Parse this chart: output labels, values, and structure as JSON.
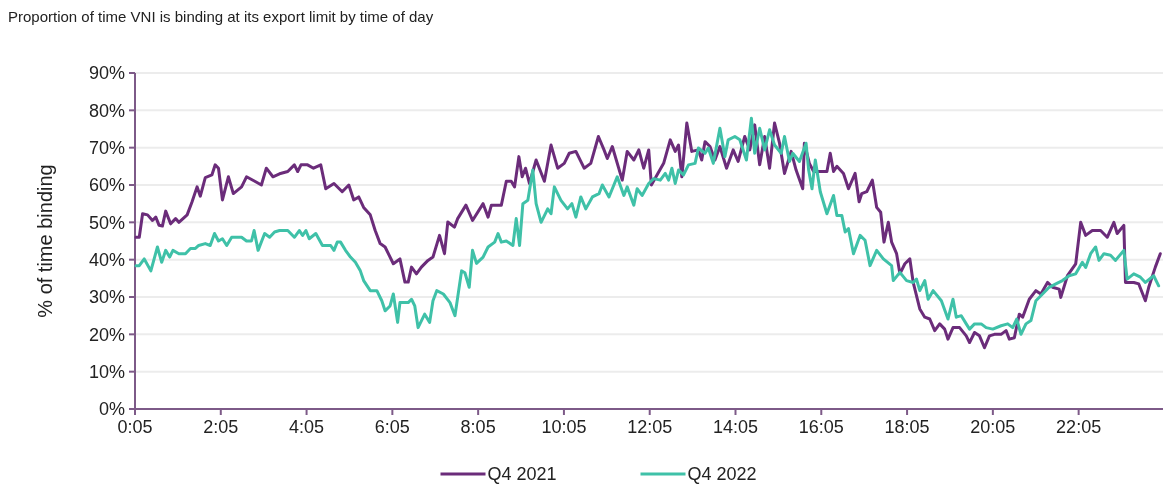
{
  "chart_data": {
    "type": "line",
    "title": "Proportion of time VNI is binding at its export limit by time of day",
    "ylabel": "% of time binding",
    "xlim": [
      0.0833,
      24.05
    ],
    "ylim": [
      0,
      90
    ],
    "xticks": [
      {
        "value": 0.0833,
        "label": "0:05"
      },
      {
        "value": 2.0833,
        "label": "2:05"
      },
      {
        "value": 4.0833,
        "label": "4:05"
      },
      {
        "value": 6.0833,
        "label": "6:05"
      },
      {
        "value": 8.0833,
        "label": "8:05"
      },
      {
        "value": 10.0833,
        "label": "10:05"
      },
      {
        "value": 12.0833,
        "label": "12:05"
      },
      {
        "value": 14.0833,
        "label": "14:05"
      },
      {
        "value": 16.0833,
        "label": "16:05"
      },
      {
        "value": 18.0833,
        "label": "18:05"
      },
      {
        "value": 20.0833,
        "label": "20:05"
      },
      {
        "value": 22.0833,
        "label": "22:05"
      }
    ],
    "yticks": [
      {
        "value": 0,
        "label": "0%"
      },
      {
        "value": 10,
        "label": "10%"
      },
      {
        "value": 20,
        "label": "20%"
      },
      {
        "value": 30,
        "label": "30%"
      },
      {
        "value": 40,
        "label": "40%"
      },
      {
        "value": 50,
        "label": "50%"
      },
      {
        "value": 60,
        "label": "60%"
      },
      {
        "value": 70,
        "label": "70%"
      },
      {
        "value": 80,
        "label": "80%"
      },
      {
        "value": 90,
        "label": "90%"
      }
    ],
    "grid": "y",
    "legend": "bottom",
    "marker": "none",
    "line_style": "solid",
    "series": [
      {
        "name": "Q4 2021",
        "color": "#6b2c7a",
        "x": [
          0.106,
          0.183,
          0.26,
          0.376,
          0.491,
          0.568,
          0.645,
          0.722,
          0.799,
          0.914,
          1.03,
          1.106,
          1.299,
          1.414,
          1.53,
          1.606,
          1.722,
          1.876,
          1.953,
          2.03,
          2.122,
          2.26,
          2.376,
          2.568,
          2.683,
          2.876,
          3.03,
          3.145,
          3.299,
          3.453,
          3.645,
          3.799,
          3.876,
          3.953,
          4.106,
          4.245,
          4.414,
          4.53,
          4.722,
          4.914,
          5.068,
          5.183,
          5.299,
          5.414,
          5.568,
          5.683,
          5.799,
          5.914,
          6.106,
          6.26,
          6.376,
          6.453,
          6.53,
          6.645,
          6.76,
          6.914,
          7.03,
          7.183,
          7.299,
          7.376,
          7.53,
          7.606,
          7.799,
          7.953,
          8.199,
          8.315,
          8.392,
          8.624,
          8.74,
          8.855,
          8.933,
          9.033,
          9.11,
          9.188,
          9.28,
          9.435,
          9.628,
          9.783,
          9.937,
          10.091,
          10.207,
          10.362,
          10.555,
          10.709,
          10.887,
          11.018,
          11.095,
          11.211,
          11.443,
          11.558,
          11.713,
          11.829,
          11.944,
          12.06,
          12.122,
          12.253,
          12.408,
          12.562,
          12.678,
          12.755,
          12.832,
          12.948,
          13.064,
          13.218,
          13.296,
          13.373,
          13.489,
          13.604,
          13.72,
          13.875,
          14.029,
          14.145,
          14.299,
          14.415,
          14.531,
          14.647,
          14.763,
          14.878,
          14.994,
          15.11,
          15.226,
          15.381,
          15.496,
          15.651,
          15.689,
          15.805,
          15.905,
          16.06,
          16.215,
          16.292,
          16.369,
          16.447,
          16.601,
          16.718,
          16.872,
          16.965,
          17.027,
          17.143,
          17.274,
          17.375,
          17.468,
          17.545,
          17.646,
          17.723,
          17.839,
          17.916,
          18.032,
          18.148,
          18.226,
          18.38,
          18.496,
          18.612,
          18.728,
          18.844,
          18.96,
          19.037,
          19.154,
          19.308,
          19.463,
          19.54,
          19.656,
          19.772,
          19.888,
          20.004,
          20.12,
          20.275,
          20.391,
          20.468,
          20.584,
          20.7,
          20.778,
          20.932,
          21.087,
          21.203,
          21.358,
          21.474,
          21.629,
          21.667,
          21.822,
          22.015,
          22.131,
          22.247,
          22.402,
          22.595,
          22.75,
          22.905,
          22.982,
          23.137,
          23.175,
          23.369,
          23.485,
          23.639,
          23.717,
          23.871,
          23.987
        ],
        "values": [
          46,
          46,
          52.3,
          52,
          50.5,
          51.4,
          49.2,
          49,
          53,
          49.6,
          51,
          50,
          52,
          55.5,
          59.5,
          57,
          62,
          62.7,
          65.4,
          64.5,
          56,
          62.2,
          57.7,
          59.5,
          62.2,
          61,
          60,
          64.5,
          62.2,
          63,
          63.6,
          65.4,
          63.6,
          65.4,
          65.4,
          64.5,
          65.4,
          59,
          60.4,
          58.2,
          60,
          56,
          56.8,
          54,
          52,
          47.8,
          44.3,
          43.4,
          38.9,
          40.2,
          34,
          34,
          38,
          36.2,
          38,
          39.8,
          40.7,
          46.5,
          41.6,
          50.1,
          48.7,
          51,
          54.6,
          50.5,
          55,
          51.4,
          54.6,
          54.6,
          61,
          61,
          59.5,
          67.6,
          62.2,
          64.5,
          60.4,
          66.7,
          61,
          70.7,
          64.5,
          65.8,
          68.5,
          69,
          64.5,
          65.8,
          73,
          69.4,
          67.1,
          70.3,
          61.3,
          69,
          66.7,
          69.4,
          64.5,
          69.4,
          60,
          62.7,
          65.8,
          72.1,
          69,
          70.7,
          62.2,
          76.6,
          69,
          69.4,
          66.7,
          71.6,
          70.3,
          66.7,
          70.3,
          64.5,
          69.4,
          66.3,
          73,
          69.4,
          76.1,
          65.4,
          73,
          64.5,
          76.6,
          71.2,
          63.1,
          69,
          64,
          59,
          71.2,
          65.8,
          63.6,
          63.6,
          63.6,
          68.5,
          63.6,
          65,
          63.1,
          59,
          63.1,
          55.5,
          57.7,
          58.2,
          61.3,
          54,
          52.7,
          44.7,
          50,
          44.7,
          41.6,
          36.2,
          38.9,
          40.2,
          33.9,
          26.8,
          24.6,
          24.1,
          21,
          22.8,
          21.4,
          18.7,
          21.8,
          21.8,
          19.6,
          17.8,
          20.5,
          19.6,
          16.4,
          19.6,
          20,
          20,
          21,
          18.7,
          19.1,
          25.4,
          24.6,
          29.4,
          31.7,
          30.8,
          33.9,
          32.6,
          32.1,
          29.9,
          35.7,
          38.9,
          50,
          46.5,
          47.8,
          47.8,
          46,
          50,
          47,
          49.2,
          33.9,
          33.9,
          33.5,
          29,
          32.6,
          38,
          41.6
        ]
      },
      {
        "name": "Q4 2022",
        "color": "#3fc1a8",
        "x": [
          0.106,
          0.183,
          0.299,
          0.453,
          0.606,
          0.706,
          0.799,
          0.891,
          0.968,
          1.106,
          1.26,
          1.376,
          1.491,
          1.568,
          1.722,
          1.837,
          1.937,
          2.03,
          2.122,
          2.222,
          2.337,
          2.568,
          2.683,
          2.799,
          2.86,
          2.953,
          3.106,
          3.222,
          3.337,
          3.453,
          3.645,
          3.799,
          3.914,
          3.991,
          4.068,
          4.145,
          4.299,
          4.453,
          4.645,
          4.722,
          4.799,
          4.876,
          4.991,
          5.106,
          5.222,
          5.337,
          5.414,
          5.568,
          5.722,
          5.837,
          5.914,
          6.03,
          6.106,
          6.206,
          6.26,
          6.453,
          6.53,
          6.606,
          6.683,
          6.837,
          6.953,
          7.03,
          7.118,
          7.272,
          7.427,
          7.543,
          7.697,
          7.774,
          7.875,
          7.952,
          8.045,
          8.199,
          8.315,
          8.469,
          8.547,
          8.624,
          8.74,
          8.894,
          8.971,
          9.049,
          9.126,
          9.242,
          9.358,
          9.435,
          9.551,
          9.705,
          9.783,
          9.86,
          10.014,
          10.168,
          10.269,
          10.362,
          10.477,
          10.593,
          10.747,
          10.902,
          10.979,
          11.134,
          11.326,
          11.481,
          11.558,
          11.713,
          11.79,
          11.906,
          12.06,
          12.176,
          12.33,
          12.446,
          12.524,
          12.601,
          12.678,
          12.755,
          12.871,
          12.987,
          13.141,
          13.218,
          13.373,
          13.45,
          13.566,
          13.72,
          13.836,
          13.913,
          14.068,
          14.184,
          14.338,
          14.454,
          14.531,
          14.647,
          14.763,
          14.878,
          14.994,
          15.149,
          15.226,
          15.342,
          15.419,
          15.574,
          15.728,
          15.789,
          15.867,
          15.944,
          16.06,
          16.215,
          16.369,
          16.447,
          16.563,
          16.64,
          16.718,
          16.834,
          16.988,
          17.104,
          17.22,
          17.375,
          17.53,
          17.723,
          17.762,
          17.916,
          18.071,
          18.226,
          18.303,
          18.38,
          18.496,
          18.574,
          18.69,
          18.883,
          19.037,
          19.154,
          19.231,
          19.347,
          19.463,
          19.54,
          19.656,
          19.811,
          19.927,
          20.082,
          20.275,
          20.43,
          20.546,
          20.639,
          20.739,
          20.855,
          20.971,
          21.087,
          21.242,
          21.396,
          21.551,
          21.706,
          21.861,
          22.015,
          22.17,
          22.247,
          22.363,
          22.479,
          22.557,
          22.673,
          22.827,
          22.943,
          23.137,
          23.214,
          23.369,
          23.524,
          23.64,
          23.833,
          23.949
        ],
        "values": [
          38.4,
          38.4,
          40.2,
          37,
          43.4,
          39.3,
          42.5,
          40.7,
          42.5,
          41.6,
          41.6,
          43,
          43,
          43.8,
          44.3,
          43.8,
          47,
          45,
          45.6,
          43.8,
          46,
          46,
          45,
          45,
          47.8,
          42.5,
          47,
          46,
          47.4,
          47.8,
          47.8,
          46,
          47.8,
          46.5,
          47.8,
          45.6,
          47,
          43.8,
          43.8,
          42.5,
          44.7,
          44.7,
          42.5,
          40.7,
          39.3,
          37,
          34.4,
          31.7,
          31.7,
          29,
          26.3,
          27.6,
          30.8,
          23.2,
          28.5,
          28.5,
          29.4,
          27.6,
          21.8,
          25.4,
          23.2,
          29,
          31.7,
          30.8,
          28.5,
          25,
          37,
          36.5,
          32.6,
          42.5,
          39,
          40.7,
          43.4,
          44.7,
          47,
          44.7,
          45,
          43.8,
          51,
          43.8,
          55,
          55.9,
          64,
          55,
          50,
          53.6,
          52.3,
          59.5,
          55.9,
          53.6,
          55,
          51.4,
          56.8,
          53.6,
          56.8,
          57.7,
          60,
          56.8,
          62.2,
          57.2,
          59.5,
          54.6,
          59,
          57.2,
          60.4,
          61.7,
          61.3,
          63.1,
          61.3,
          64.5,
          60.4,
          64,
          62.7,
          65.4,
          65.8,
          69.9,
          68.5,
          69.9,
          65.8,
          75.2,
          67.6,
          72.1,
          73,
          72.1,
          66.7,
          77.9,
          68.5,
          75.2,
          69.4,
          74.8,
          70.7,
          68.5,
          73,
          66.3,
          68.5,
          66.3,
          71.2,
          64,
          59,
          66.7,
          58.2,
          52.3,
          57.2,
          51.8,
          51.8,
          47.4,
          48.3,
          41.6,
          46.5,
          45.2,
          38.4,
          42.5,
          40.2,
          38.4,
          34.4,
          36.6,
          34.4,
          33.9,
          34.8,
          31.7,
          34.4,
          29.4,
          31.7,
          29,
          24.1,
          29.4,
          24.6,
          25,
          22.8,
          21.4,
          22.8,
          22.8,
          21.8,
          21.4,
          22.3,
          22.8,
          21.8,
          24.1,
          20,
          22.8,
          23.7,
          29,
          30.8,
          32.6,
          33.5,
          34.4,
          35.7,
          36.2,
          39.3,
          37.9,
          41.6,
          43.4,
          39.8,
          41.6,
          41.2,
          39.8,
          42.5,
          34.8,
          36.2,
          35.3,
          33.9,
          35.7,
          33
        ]
      }
    ]
  }
}
